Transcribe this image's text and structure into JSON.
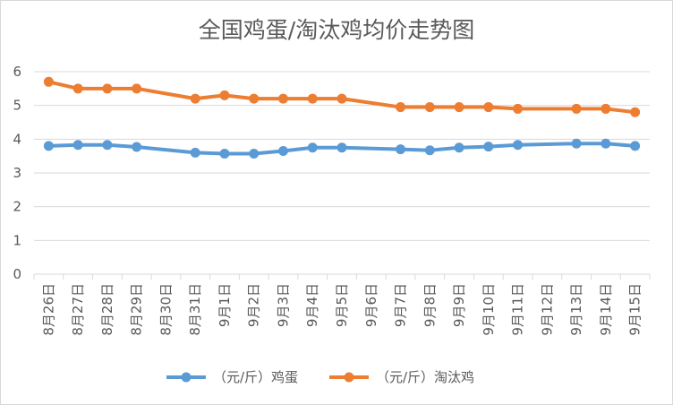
{
  "chart_data": {
    "type": "line",
    "title": "全国鸡蛋/淘汰鸡均价走势图",
    "xlabel": "",
    "ylabel": "",
    "ylim": [
      0,
      6
    ],
    "yticks": [
      "0",
      "1",
      "2",
      "3",
      "4",
      "5",
      "6"
    ],
    "grid": "horizontal",
    "legend_position": "bottom",
    "categories": [
      "8月26日",
      "8月27日",
      "8月28日",
      "8月29日",
      "8月30日",
      "8月31日",
      "9月1日",
      "9月2日",
      "9月3日",
      "9月4日",
      "9月5日",
      "9月6日",
      "9月7日",
      "9月8日",
      "9月9日",
      "9月10日",
      "9月11日",
      "9月12日",
      "9月13日",
      "9月14日",
      "9月15日"
    ],
    "series": [
      {
        "name": "（元/斤）鸡蛋",
        "color": "#5b9bd5",
        "values": [
          3.8,
          3.83,
          3.83,
          3.77,
          null,
          3.6,
          3.57,
          3.57,
          3.65,
          3.75,
          3.75,
          null,
          3.7,
          3.67,
          3.75,
          3.78,
          3.83,
          null,
          3.87,
          3.87,
          3.8
        ]
      },
      {
        "name": "（元/斤）淘汰鸡",
        "color": "#ed7d31",
        "values": [
          5.7,
          5.5,
          5.5,
          5.5,
          null,
          5.2,
          5.3,
          5.2,
          5.2,
          5.2,
          5.2,
          null,
          4.95,
          4.95,
          4.95,
          4.95,
          4.9,
          null,
          4.9,
          4.9,
          4.8
        ]
      }
    ]
  }
}
